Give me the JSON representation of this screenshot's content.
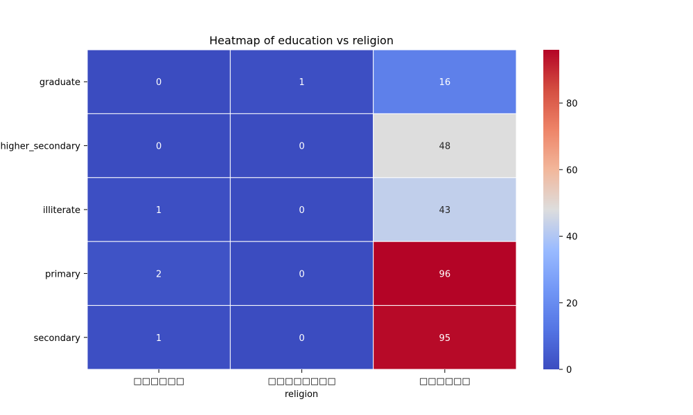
{
  "chart_data": {
    "type": "heatmap",
    "title": "Heatmap of education vs religion",
    "xlabel": "religion",
    "ylabel": "",
    "x_categories": [
      "□□□□□□",
      "□□□□□□□□",
      "□□□□□□"
    ],
    "y_categories": [
      "graduate",
      "higher_secondary",
      "illiterate",
      "primary",
      "secondary"
    ],
    "values": [
      [
        0,
        1,
        16
      ],
      [
        0,
        0,
        48
      ],
      [
        1,
        0,
        43
      ],
      [
        2,
        0,
        96
      ],
      [
        1,
        0,
        95
      ]
    ],
    "colorbar": {
      "colormap": "coolwarm",
      "min": 0,
      "max": 96,
      "ticks": [
        0,
        20,
        40,
        60,
        80
      ]
    },
    "annotations": true,
    "grid": false,
    "legend": "colorbar-right"
  }
}
